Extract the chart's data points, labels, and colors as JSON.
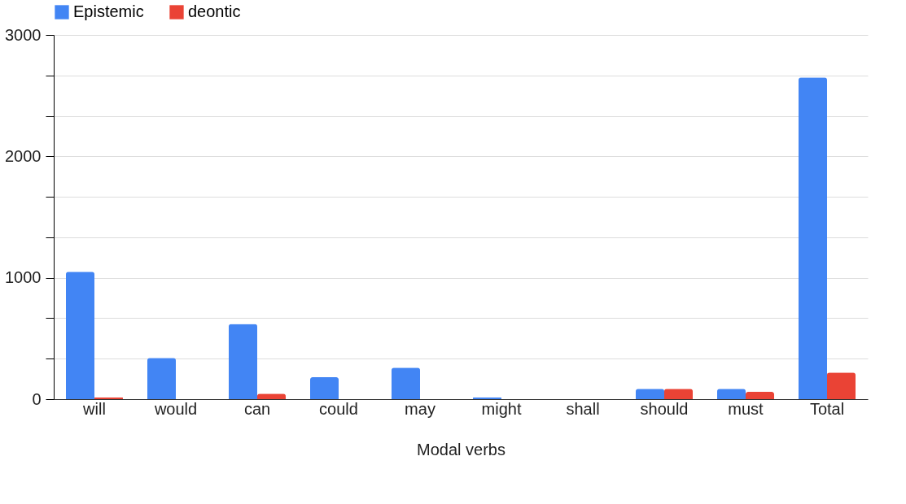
{
  "chart_data": {
    "type": "bar",
    "xlabel": "Modal verbs",
    "categories": [
      "will",
      "would",
      "can",
      "could",
      "may",
      "might",
      "shall",
      "should",
      "must",
      "Total"
    ],
    "series": [
      {
        "name": "Epistemic",
        "color": "#4285f4",
        "values": [
          1050,
          340,
          620,
          180,
          260,
          15,
          0,
          85,
          85,
          2650
        ]
      },
      {
        "name": "deontic",
        "color": "#ea4335",
        "values": [
          15,
          0,
          45,
          0,
          0,
          0,
          0,
          85,
          60,
          220
        ]
      }
    ],
    "ylim": [
      0,
      3000
    ],
    "yticks": [
      0,
      {
        "value": 333.3,
        "label": null
      },
      {
        "value": 666.7,
        "label": null
      },
      1000,
      {
        "value": 1333.3,
        "label": null
      },
      {
        "value": 1666.7,
        "label": null
      },
      2000,
      {
        "value": 2333.3,
        "label": null
      },
      {
        "value": 2666.7,
        "label": null
      },
      3000
    ],
    "grid": "y",
    "legend": "top"
  }
}
